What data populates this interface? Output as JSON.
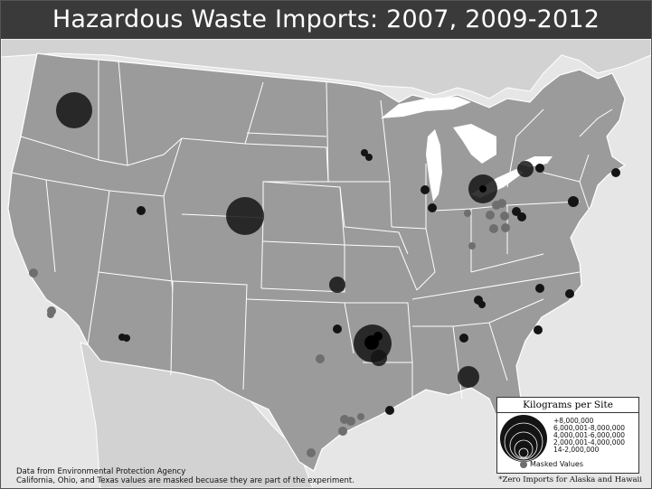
{
  "title": "Hazardous Waste Imports: 2007, 2009-2012",
  "source_line1": "Data from Environmental Protection Agency",
  "source_line2": "California, Ohio, and Texas values are masked becuase they are part of the experiment.",
  "zero_note": "*Zero Imports for Alaska and Hawaii",
  "legend": {
    "title": "Kilograms per Site",
    "classes": [
      "+8,000,000",
      "6,000,001-8,000,000",
      "4,000,001-6,000,000",
      "2,000,001-4,000,000",
      "14-2,000,000"
    ],
    "masked_label": "Masked Values"
  },
  "colors": {
    "background": "#e6e6e6",
    "land": "#9b9b9b",
    "water": "#ffffff",
    "borders": "#ffffff",
    "symbol": "#141414",
    "masked": "#6e6e6e",
    "title_bar": "#3a3a3a"
  },
  "map": {
    "type": "proportional symbol map",
    "region": "Contiguous United States",
    "site_classes": [
      {
        "region": "Oregon",
        "class": "6,000,001-8,000,000"
      },
      {
        "region": "Idaho/Utah border",
        "class": "14-2,000,000"
      },
      {
        "region": "Nebraska/Wyoming",
        "class": "6,000,001-8,000,000"
      },
      {
        "region": "Arizona",
        "class": "14-2,000,000"
      },
      {
        "region": "Minnesota/Wisconsin",
        "class": "14-2,000,000"
      },
      {
        "region": "Illinois (north)",
        "class": "14-2,000,000"
      },
      {
        "region": "Illinois (Chicago)",
        "class": "14-2,000,000"
      },
      {
        "region": "Michigan/Ohio",
        "class": "2,000,001-4,000,000"
      },
      {
        "region": "New York (west)",
        "class": "14-2,000,000"
      },
      {
        "region": "New York (central)",
        "class": "14-2,000,000"
      },
      {
        "region": "Massachusetts",
        "class": "14-2,000,000"
      },
      {
        "region": "New Jersey",
        "class": "14-2,000,000"
      },
      {
        "region": "Pennsylvania (west)",
        "class": "14-2,000,000"
      },
      {
        "region": "Kansas",
        "class": "14-2,000,000"
      },
      {
        "region": "Oklahoma",
        "class": "14-2,000,000"
      },
      {
        "region": "Arkansas",
        "class": "4,000,001-6,000,000"
      },
      {
        "region": "Arkansas (south)",
        "class": "14-2,000,000"
      },
      {
        "region": "Tennessee",
        "class": "14-2,000,000"
      },
      {
        "region": "Virginia",
        "class": "14-2,000,000"
      },
      {
        "region": "North Carolina",
        "class": "14-2,000,000"
      },
      {
        "region": "South Carolina",
        "class": "14-2,000,000"
      },
      {
        "region": "Alabama",
        "class": "14-2,000,000"
      },
      {
        "region": "Alabama (south)",
        "class": "2,000,001-4,000,000"
      },
      {
        "region": "Mississippi (coast)",
        "class": "14-2,000,000"
      }
    ],
    "masked_states": [
      "California",
      "Ohio",
      "Texas"
    ]
  }
}
